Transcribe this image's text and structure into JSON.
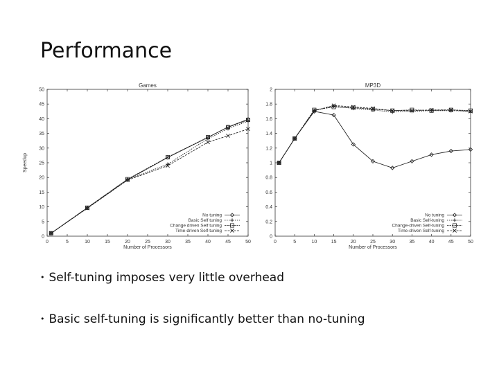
{
  "slide": {
    "title": "Performance",
    "bullets": [
      "Self-tuning imposes very little overhead",
      "Basic self-tuning is significantly better than no-tuning"
    ],
    "bullet_symbol": "•"
  },
  "chart_data": [
    {
      "type": "line",
      "title": "Games",
      "xlabel": "Number of Processors",
      "ylabel": "Speedup",
      "xlim": [
        0,
        50
      ],
      "ylim": [
        0,
        50
      ],
      "xticks": [
        0,
        5,
        10,
        15,
        20,
        25,
        30,
        35,
        40,
        45,
        50
      ],
      "yticks": [
        0,
        5,
        10,
        15,
        20,
        25,
        30,
        35,
        40,
        45,
        50
      ],
      "legend_position": "bottom-right",
      "x": [
        1,
        10,
        20,
        30,
        40,
        45,
        50
      ],
      "series": [
        {
          "name": "No tuning",
          "marker": "diamond",
          "values": [
            1,
            9.6,
            19.2,
            26.8,
            33.6,
            37.2,
            39.8
          ]
        },
        {
          "name": "Basic Self tuning",
          "marker": "plus",
          "values": [
            1,
            9.7,
            19.3,
            24.5,
            33.2,
            36.6,
            39.2
          ]
        },
        {
          "name": "Change driven Self tuning",
          "marker": "square",
          "values": [
            1,
            9.7,
            19.4,
            26.9,
            33.7,
            37.1,
            39.6
          ]
        },
        {
          "name": "Time-driven Self-tuning",
          "marker": "x",
          "values": [
            1,
            9.5,
            19.1,
            24.0,
            32.0,
            34.2,
            36.5
          ]
        }
      ]
    },
    {
      "type": "line",
      "title": "MP3D",
      "xlabel": "Number of Processors",
      "ylabel": "",
      "xlim": [
        0,
        50
      ],
      "ylim": [
        0,
        2
      ],
      "xticks": [
        0,
        5,
        10,
        15,
        20,
        25,
        30,
        35,
        40,
        45,
        50
      ],
      "yticks": [
        0,
        0.2,
        0.4,
        0.6,
        0.8,
        1,
        1.2,
        1.4,
        1.6,
        1.8,
        2
      ],
      "legend_position": "bottom-right",
      "x": [
        1,
        5,
        10,
        15,
        20,
        25,
        30,
        35,
        40,
        45,
        50
      ],
      "series": [
        {
          "name": "No tuning",
          "marker": "diamond",
          "values": [
            1,
            1.33,
            1.7,
            1.65,
            1.25,
            1.02,
            0.93,
            1.02,
            1.11,
            1.16,
            1.18
          ]
        },
        {
          "name": "Basic Self-tuning",
          "marker": "plus",
          "values": [
            1,
            1.33,
            1.71,
            1.77,
            1.74,
            1.72,
            1.69,
            1.7,
            1.71,
            1.71,
            1.7
          ]
        },
        {
          "name": "Change-driven Self-tuning",
          "marker": "square",
          "values": [
            1,
            1.33,
            1.72,
            1.76,
            1.75,
            1.73,
            1.71,
            1.72,
            1.71,
            1.72,
            1.71
          ]
        },
        {
          "name": "Time-driven Self-tuning",
          "marker": "x",
          "values": [
            1,
            1.33,
            1.71,
            1.78,
            1.76,
            1.74,
            1.71,
            1.71,
            1.72,
            1.72,
            1.7
          ]
        }
      ]
    }
  ]
}
